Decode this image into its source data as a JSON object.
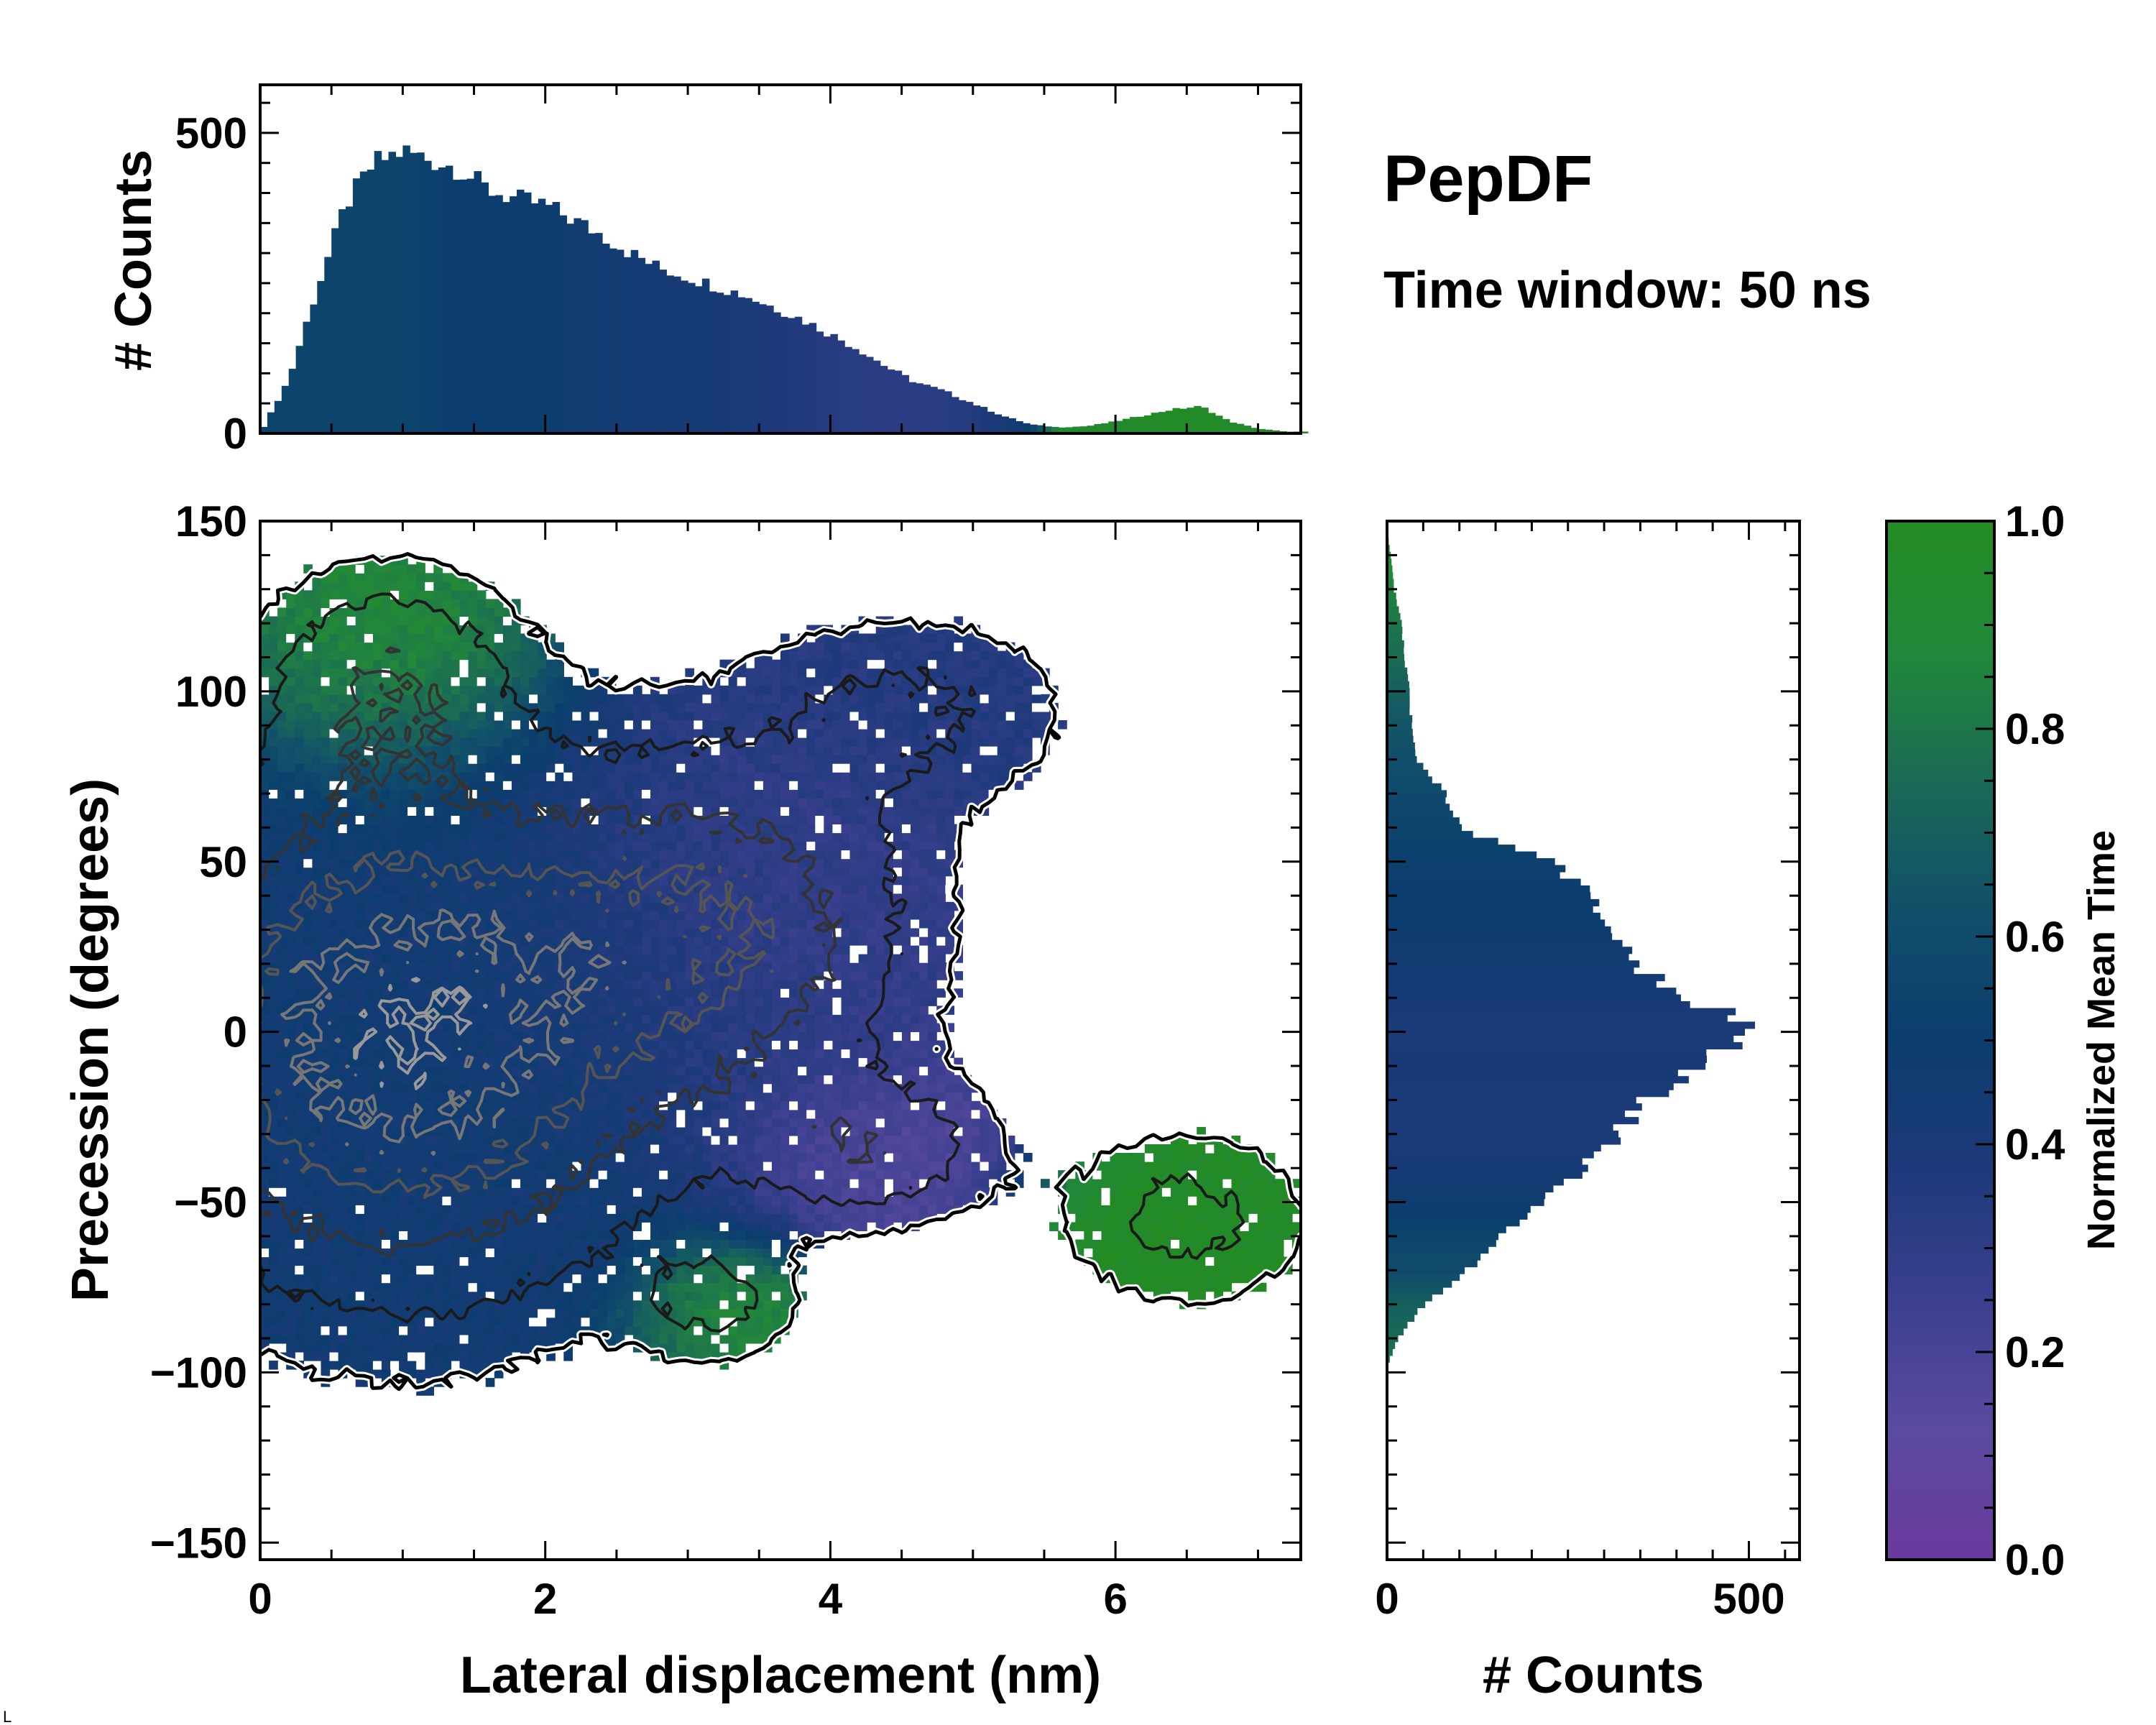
{
  "title": "PepDF",
  "subtitle": "Time window: 50 ns",
  "chart_data": [
    {
      "type": "heatmap",
      "name": "joint-distribution",
      "xlabel": "Lateral displacement (nm)",
      "ylabel": "Precession (degrees)",
      "xlim": [
        0,
        7.3
      ],
      "ylim": [
        -155,
        150
      ],
      "xticks": [
        0,
        2,
        4,
        6
      ],
      "yticks": [
        150,
        100,
        50,
        0,
        -50,
        -100,
        -150
      ],
      "ytick_labels": [
        "150",
        "100",
        "50",
        "0",
        "−50",
        "−100",
        "−150"
      ],
      "color_metric": "Normalized Mean Time",
      "clusters": [
        {
          "x": 1.0,
          "y": 0,
          "sx": 1.2,
          "sy": 50,
          "weight": 1.0,
          "time": 0.45
        },
        {
          "x": 3.3,
          "y": 30,
          "sx": 0.9,
          "sy": 35,
          "weight": 0.55,
          "time": 0.28
        },
        {
          "x": 4.3,
          "y": -35,
          "sx": 0.6,
          "sy": 15,
          "weight": 0.35,
          "time": 0.16
        },
        {
          "x": 0.9,
          "y": 105,
          "sx": 0.6,
          "sy": 22,
          "weight": 0.35,
          "time": 0.95
        },
        {
          "x": 4.6,
          "y": 95,
          "sx": 0.8,
          "sy": 20,
          "weight": 0.25,
          "time": 0.35
        },
        {
          "x": 6.5,
          "y": -55,
          "sx": 0.6,
          "sy": 18,
          "weight": 0.3,
          "time": 0.97
        },
        {
          "x": 3.2,
          "y": -80,
          "sx": 0.4,
          "sy": 12,
          "weight": 0.25,
          "time": 0.93
        }
      ]
    },
    {
      "type": "bar",
      "name": "lateral-displacement-histogram",
      "ylabel": "# Counts",
      "xlim": [
        0,
        7.3
      ],
      "ylim": [
        0,
        580
      ],
      "yticks": [
        0,
        500
      ],
      "bin_width": 0.05,
      "x": [
        0.0,
        0.2,
        0.4,
        0.6,
        0.8,
        1.0,
        1.2,
        1.4,
        1.6,
        1.8,
        2.0,
        2.2,
        2.4,
        2.6,
        2.8,
        3.0,
        3.2,
        3.4,
        3.6,
        3.8,
        4.0,
        4.2,
        4.4,
        4.6,
        4.8,
        5.0,
        5.2,
        5.4,
        5.6,
        5.8,
        6.0,
        6.2,
        6.4,
        6.6,
        6.8,
        7.0,
        7.2
      ],
      "values": [
        0,
        90,
        240,
        380,
        450,
        470,
        455,
        440,
        405,
        390,
        380,
        355,
        330,
        300,
        275,
        260,
        245,
        230,
        210,
        190,
        165,
        140,
        110,
        85,
        70,
        50,
        30,
        15,
        10,
        12,
        20,
        30,
        40,
        45,
        20,
        8,
        3
      ],
      "mean_time": [
        0.55,
        0.55,
        0.55,
        0.55,
        0.55,
        0.55,
        0.52,
        0.5,
        0.5,
        0.5,
        0.5,
        0.47,
        0.45,
        0.44,
        0.43,
        0.43,
        0.42,
        0.4,
        0.38,
        0.36,
        0.34,
        0.33,
        0.32,
        0.32,
        0.33,
        0.35,
        0.4,
        0.5,
        0.9,
        0.95,
        0.95,
        0.96,
        0.97,
        0.97,
        0.96,
        0.95,
        0.95
      ]
    },
    {
      "type": "bar",
      "name": "precession-histogram",
      "orientation": "horizontal",
      "xlabel": "# Counts",
      "xlim": [
        0,
        570
      ],
      "xticks": [
        0,
        500
      ],
      "bin_width": 2,
      "y": [
        -98,
        -90,
        -80,
        -70,
        -60,
        -50,
        -40,
        -30,
        -20,
        -10,
        0,
        10,
        20,
        30,
        40,
        50,
        60,
        70,
        80,
        90,
        100,
        110,
        120,
        130,
        140,
        148
      ],
      "values": [
        0,
        15,
        50,
        110,
        160,
        210,
        270,
        320,
        360,
        420,
        500,
        430,
        330,
        320,
        280,
        230,
        100,
        80,
        40,
        35,
        30,
        25,
        20,
        10,
        5,
        0
      ],
      "mean_time": [
        0.8,
        0.75,
        0.7,
        0.6,
        0.55,
        0.48,
        0.42,
        0.4,
        0.4,
        0.42,
        0.4,
        0.42,
        0.45,
        0.48,
        0.5,
        0.52,
        0.55,
        0.58,
        0.62,
        0.65,
        0.7,
        0.75,
        0.8,
        0.85,
        0.9,
        0.9
      ]
    },
    {
      "type": "colorbar",
      "name": "normalized-mean-time-colorbar",
      "label": "Normalized Mean Time",
      "range": [
        0.0,
        1.0
      ],
      "ticks": [
        "1.0",
        "0.8",
        "0.6",
        "0.4",
        "0.2",
        "0.0"
      ],
      "colormap": [
        "#6a3a9e",
        "#5b4aa0",
        "#3b3f8f",
        "#1e3a7a",
        "#0b3d6e",
        "#114f6a",
        "#1a6a55",
        "#22883a",
        "#238b22"
      ]
    }
  ],
  "corner_mark": "L"
}
